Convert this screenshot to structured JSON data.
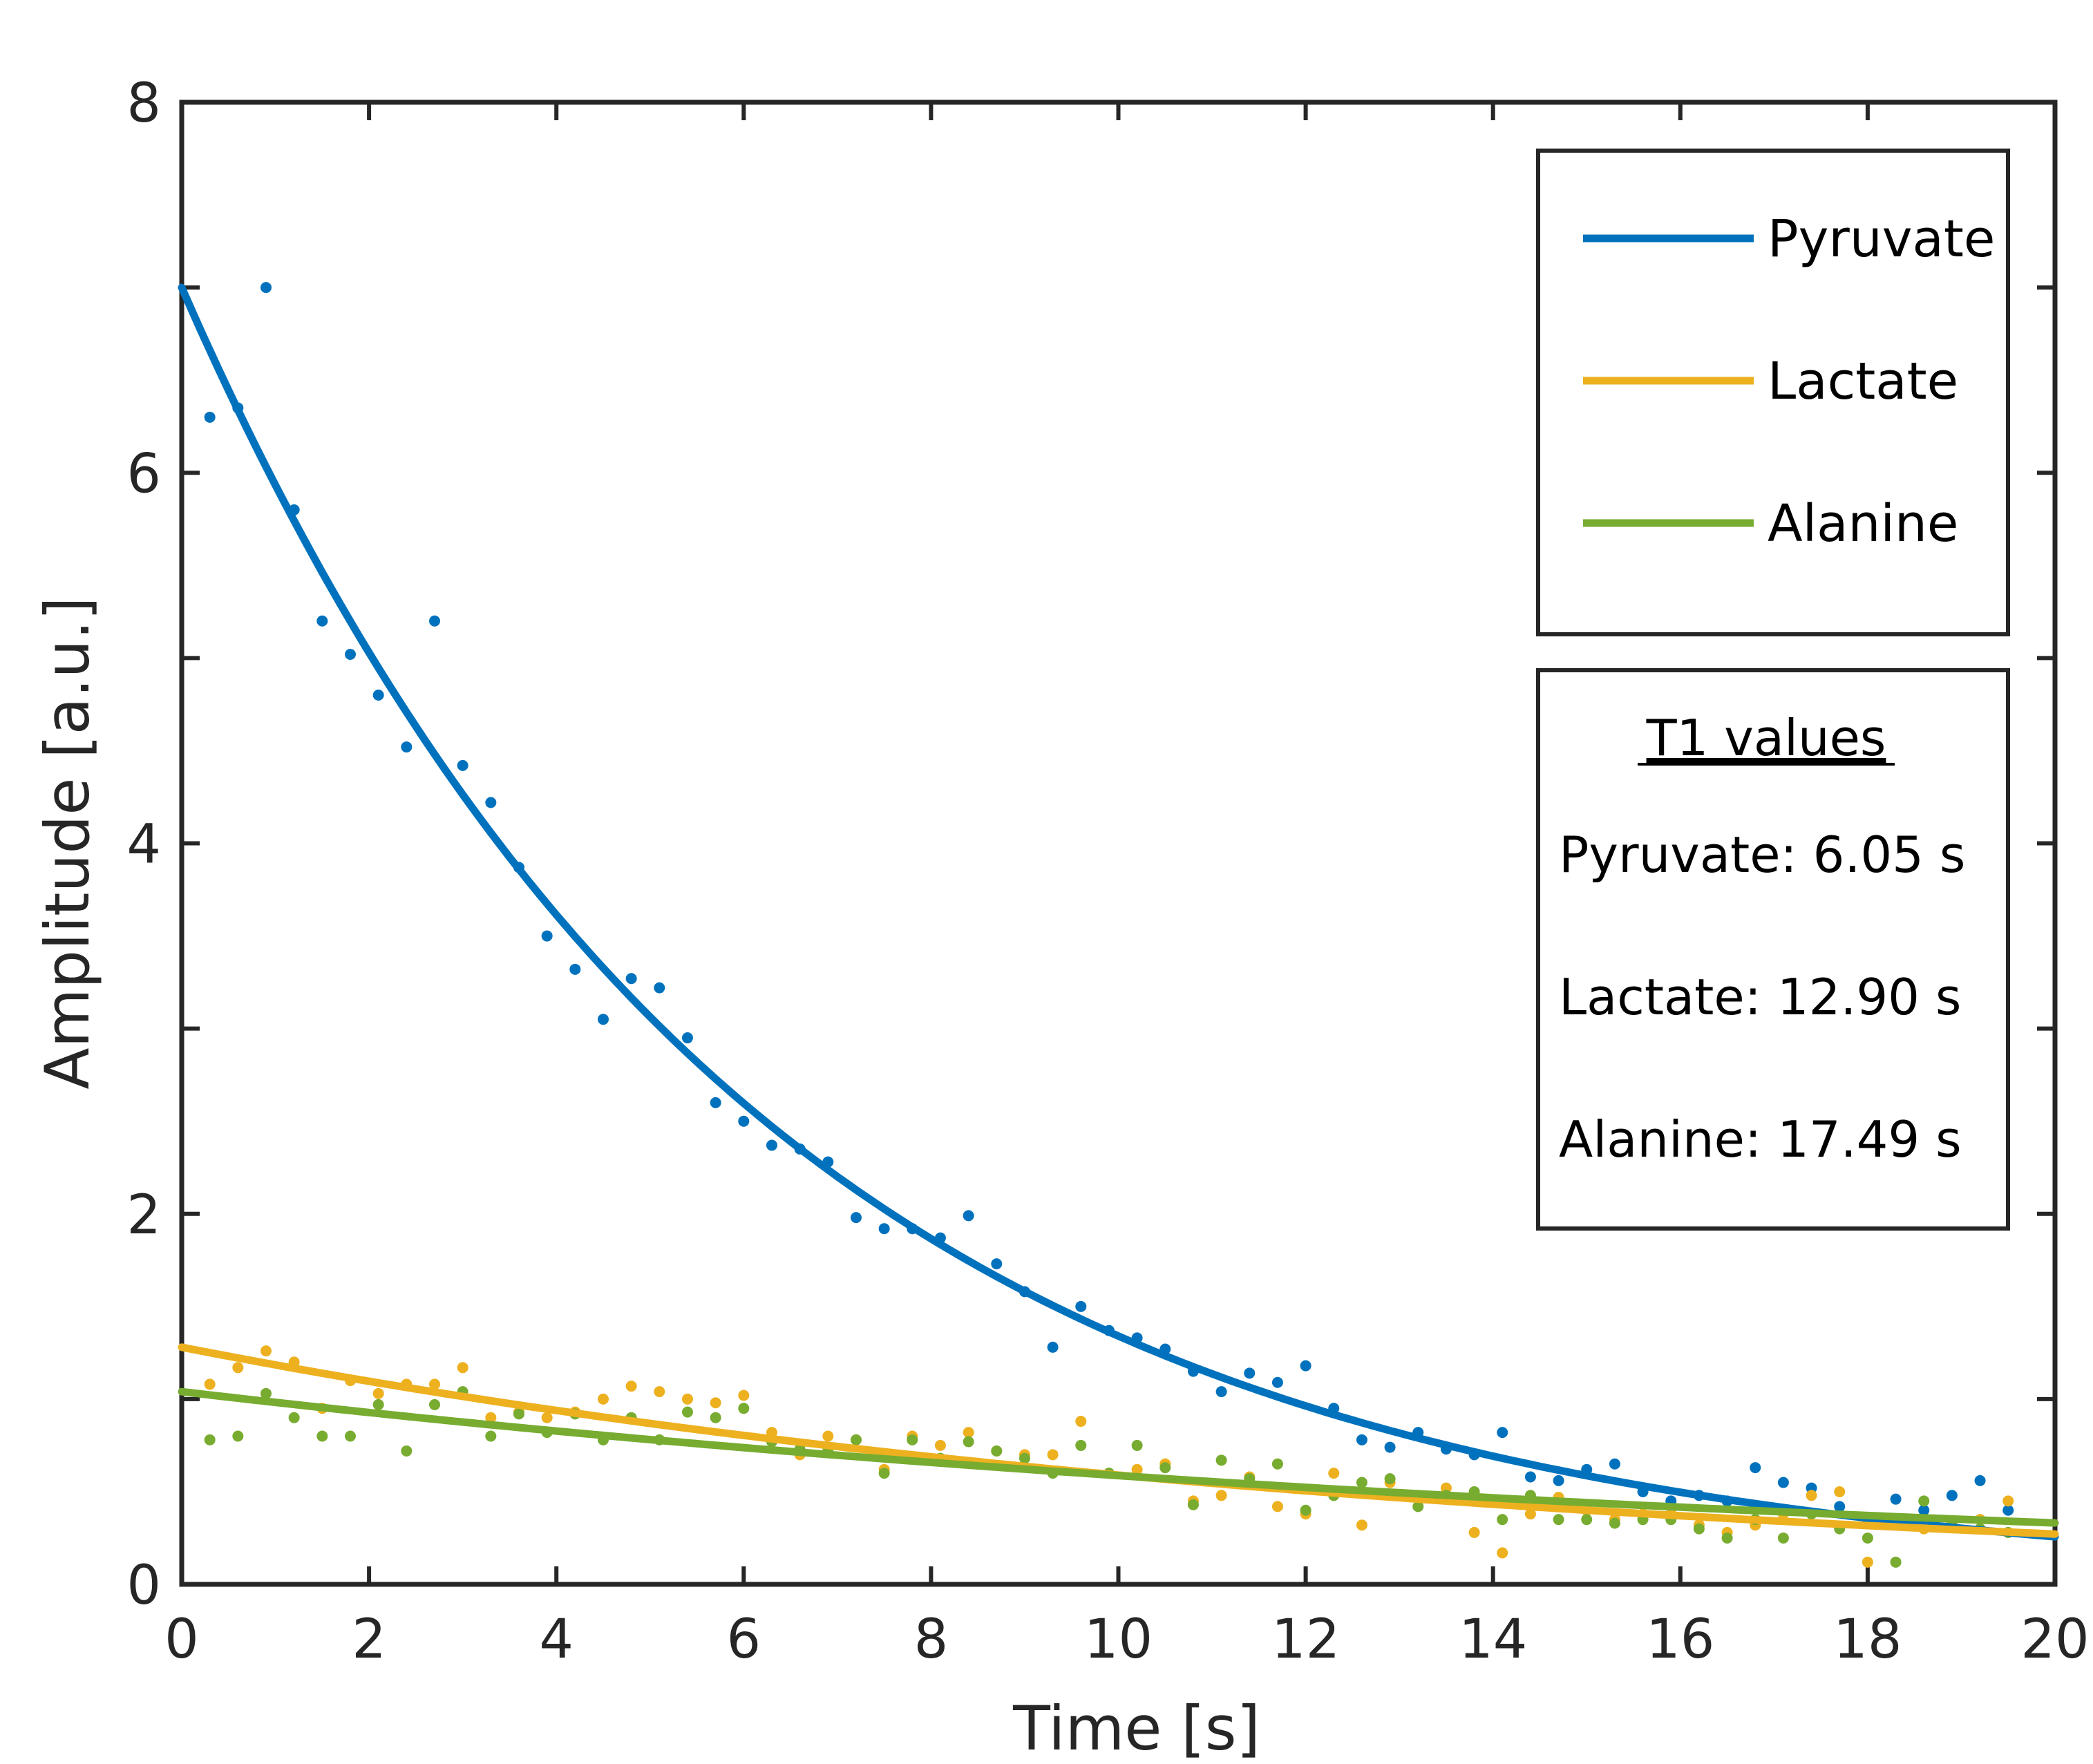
{
  "chart_data": {
    "type": "scatter",
    "title": "",
    "xlabel": "Time [s]",
    "ylabel": "Amplitude [a.u.]",
    "xlim": [
      0,
      20
    ],
    "ylim": [
      0,
      8
    ],
    "xticks": [
      0,
      2,
      4,
      6,
      8,
      10,
      12,
      14,
      16,
      18,
      20
    ],
    "yticks": [
      0,
      2,
      4,
      6,
      8
    ],
    "grid": false,
    "legend_position": "top-right",
    "series": [
      {
        "name": "Pyruvate",
        "color": "#0072BD",
        "fit": {
          "type": "exponential",
          "a0": 7.0,
          "t1": 6.05
        },
        "x": [
          0.3,
          0.6,
          0.9,
          1.2,
          1.5,
          1.8,
          2.1,
          2.4,
          2.7,
          3.0,
          3.3,
          3.6,
          3.9,
          4.2,
          4.5,
          4.8,
          5.1,
          5.4,
          5.7,
          6.0,
          6.3,
          6.6,
          6.9,
          7.2,
          7.5,
          7.8,
          8.1,
          8.4,
          8.7,
          9.0,
          9.3,
          9.6,
          9.9,
          10.2,
          10.5,
          10.8,
          11.1,
          11.4,
          11.7,
          12.0,
          12.3,
          12.6,
          12.9,
          13.2,
          13.5,
          13.8,
          14.1,
          14.4,
          14.7,
          15.0,
          15.3,
          15.6,
          15.9,
          16.2,
          16.5,
          16.8,
          17.1,
          17.4,
          17.7,
          18.0,
          18.3,
          18.6,
          18.9,
          19.2,
          19.5
        ],
        "y": [
          6.3,
          6.35,
          7.0,
          5.8,
          5.2,
          5.02,
          4.8,
          4.52,
          5.2,
          4.42,
          4.22,
          3.87,
          3.5,
          3.32,
          3.05,
          3.27,
          3.22,
          2.95,
          2.6,
          2.5,
          2.37,
          2.35,
          2.28,
          1.98,
          1.92,
          1.92,
          1.87,
          1.99,
          1.73,
          1.58,
          1.28,
          1.5,
          1.37,
          1.33,
          1.27,
          1.15,
          1.04,
          1.14,
          1.09,
          1.18,
          0.95,
          0.78,
          0.74,
          0.82,
          0.73,
          0.7,
          0.82,
          0.58,
          0.56,
          0.62,
          0.65,
          0.5,
          0.45,
          0.48,
          0.45,
          0.63,
          0.55,
          0.52,
          0.42,
          0.35,
          0.46,
          0.4,
          0.48,
          0.56,
          0.4
        ]
      },
      {
        "name": "Lactate",
        "color": "#EDB120",
        "fit": {
          "type": "exponential",
          "a0": 1.28,
          "t1": 12.9
        },
        "x": [
          0.3,
          0.6,
          0.9,
          1.2,
          1.5,
          1.8,
          2.1,
          2.4,
          2.7,
          3.0,
          3.3,
          3.6,
          3.9,
          4.2,
          4.5,
          4.8,
          5.1,
          5.4,
          5.7,
          6.0,
          6.3,
          6.6,
          6.9,
          7.2,
          7.5,
          7.8,
          8.1,
          8.4,
          8.7,
          9.0,
          9.3,
          9.6,
          9.9,
          10.2,
          10.5,
          10.8,
          11.1,
          11.4,
          11.7,
          12.0,
          12.3,
          12.6,
          12.9,
          13.2,
          13.5,
          13.8,
          14.1,
          14.4,
          14.7,
          15.0,
          15.3,
          15.6,
          15.9,
          16.2,
          16.5,
          16.8,
          17.1,
          17.4,
          17.7,
          18.0,
          18.3,
          18.6,
          18.9,
          19.2,
          19.5
        ],
        "y": [
          1.08,
          1.17,
          1.26,
          1.2,
          0.95,
          1.1,
          1.03,
          1.08,
          1.08,
          1.17,
          0.9,
          0.93,
          0.9,
          0.93,
          1.0,
          1.07,
          1.04,
          1.0,
          0.98,
          1.02,
          0.82,
          0.7,
          0.8,
          0.78,
          0.62,
          0.8,
          0.75,
          0.82,
          0.72,
          0.7,
          0.7,
          0.88,
          0.6,
          0.62,
          0.65,
          0.45,
          0.48,
          0.58,
          0.42,
          0.38,
          0.6,
          0.32,
          0.55,
          0.48,
          0.52,
          0.28,
          0.17,
          0.38,
          0.47,
          0.4,
          0.35,
          0.38,
          0.38,
          0.32,
          0.28,
          0.32,
          0.38,
          0.48,
          0.5,
          0.12,
          0.35,
          0.3,
          0.33,
          0.35,
          0.45
        ]
      },
      {
        "name": "Alanine",
        "color": "#77AC30",
        "fit": {
          "type": "exponential",
          "a0": 1.04,
          "t1": 17.49
        },
        "x": [
          0.3,
          0.6,
          0.9,
          1.2,
          1.5,
          1.8,
          2.1,
          2.4,
          2.7,
          3.0,
          3.3,
          3.6,
          3.9,
          4.2,
          4.5,
          4.8,
          5.1,
          5.4,
          5.7,
          6.0,
          6.3,
          6.6,
          6.9,
          7.2,
          7.5,
          7.8,
          8.1,
          8.4,
          8.7,
          9.0,
          9.3,
          9.6,
          9.9,
          10.2,
          10.5,
          10.8,
          11.1,
          11.4,
          11.7,
          12.0,
          12.3,
          12.6,
          12.9,
          13.2,
          13.5,
          13.8,
          14.1,
          14.4,
          14.7,
          15.0,
          15.3,
          15.6,
          15.9,
          16.2,
          16.5,
          16.8,
          17.1,
          17.4,
          17.7,
          18.0,
          18.3,
          18.6,
          18.9,
          19.2,
          19.5
        ],
        "y": [
          0.78,
          0.8,
          1.03,
          0.9,
          0.8,
          0.8,
          0.97,
          0.72,
          0.97,
          1.04,
          0.8,
          0.92,
          0.82,
          0.92,
          0.78,
          0.9,
          0.78,
          0.93,
          0.9,
          0.95,
          0.77,
          0.73,
          0.72,
          0.78,
          0.6,
          0.78,
          0.68,
          0.77,
          0.72,
          0.68,
          0.6,
          0.75,
          0.6,
          0.75,
          0.63,
          0.43,
          0.67,
          0.57,
          0.65,
          0.4,
          0.48,
          0.55,
          0.57,
          0.42,
          0.48,
          0.5,
          0.35,
          0.48,
          0.35,
          0.35,
          0.33,
          0.35,
          0.35,
          0.3,
          0.25,
          0.35,
          0.25,
          0.38,
          0.3,
          0.25,
          0.12,
          0.45,
          0.32,
          0.3,
          0.28
        ]
      }
    ],
    "annotation": {
      "title": "T1 values",
      "lines": [
        "Pyruvate: 6.05 s",
        "Lactate: 12.90 s",
        "Alanine: 17.49 s"
      ]
    }
  }
}
